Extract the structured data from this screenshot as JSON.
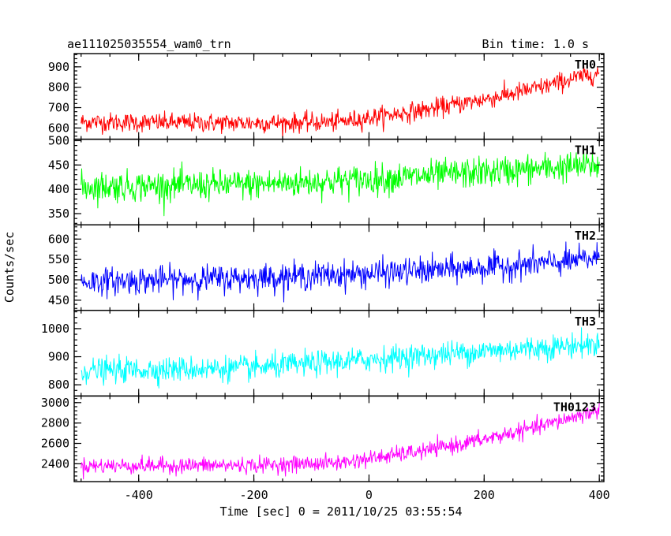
{
  "chart_data": {
    "type": "line",
    "title": "ae111025035554_wam0_trn",
    "subtitle": "Bin time: 1.0 s",
    "xlabel": "Time [sec] 0 = 2011/10/25 03:55:54",
    "ylabel": "Counts/sec",
    "xlim": [
      -512,
      408
    ],
    "x_ticks": [
      -400,
      -200,
      0,
      200,
      400
    ],
    "grid": false,
    "panels": [
      {
        "name": "TH0",
        "color": "#ff0000",
        "ylim": [
          545,
          965
        ],
        "y_ticks": [
          600,
          700,
          800,
          900
        ],
        "trend": [
          [
            -500,
            630
          ],
          [
            -300,
            625
          ],
          [
            -150,
            625
          ],
          [
            -50,
            630
          ],
          [
            0,
            650
          ],
          [
            100,
            690
          ],
          [
            200,
            740
          ],
          [
            300,
            800
          ],
          [
            350,
            840
          ],
          [
            400,
            870
          ]
        ],
        "noise": 42
      },
      {
        "name": "TH1",
        "color": "#00ff00",
        "ylim": [
          327,
          503
        ],
        "y_ticks": [
          350,
          400,
          450,
          500
        ],
        "trend": [
          [
            -500,
            405
          ],
          [
            -200,
            410
          ],
          [
            0,
            420
          ],
          [
            200,
            435
          ],
          [
            400,
            450
          ]
        ],
        "noise": 28
      },
      {
        "name": "TH2",
        "color": "#0000ff",
        "ylim": [
          425,
          635
        ],
        "y_ticks": [
          450,
          500,
          550,
          600
        ],
        "trend": [
          [
            -500,
            495
          ],
          [
            -200,
            505
          ],
          [
            0,
            515
          ],
          [
            200,
            530
          ],
          [
            350,
            545
          ],
          [
            400,
            555
          ]
        ],
        "noise": 30
      },
      {
        "name": "TH3",
        "color": "#00ffff",
        "ylim": [
          760,
          1065
        ],
        "y_ticks": [
          800,
          900,
          1000
        ],
        "trend": [
          [
            -500,
            850
          ],
          [
            -200,
            860
          ],
          [
            0,
            890
          ],
          [
            200,
            920
          ],
          [
            400,
            945
          ]
        ],
        "noise": 40
      },
      {
        "name": "TH0123",
        "color": "#ff00ff",
        "ylim": [
          2225,
          3065
        ],
        "y_ticks": [
          2400,
          2600,
          2800,
          3000
        ],
        "trend": [
          [
            -500,
            2380
          ],
          [
            -200,
            2385
          ],
          [
            -50,
            2410
          ],
          [
            0,
            2450
          ],
          [
            100,
            2530
          ],
          [
            200,
            2640
          ],
          [
            300,
            2770
          ],
          [
            400,
            2930
          ]
        ],
        "noise": 70
      }
    ]
  }
}
